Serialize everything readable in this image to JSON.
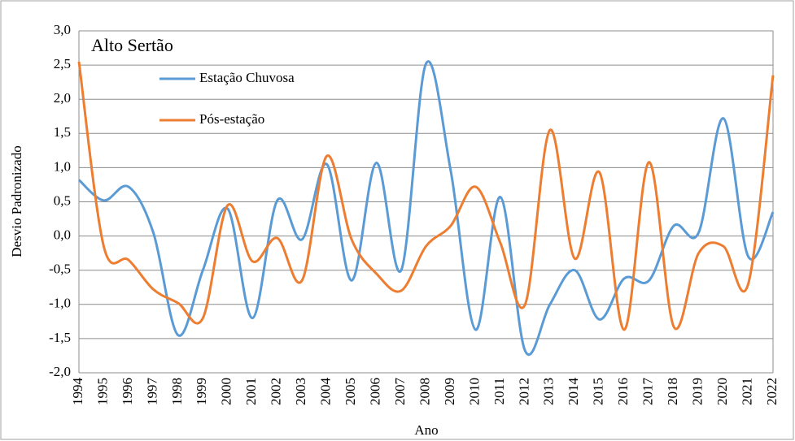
{
  "chart_data": {
    "type": "line",
    "title": "Alto Sertão",
    "x_label": "Ano",
    "y_label": "Desvio Padronizado",
    "categories": [
      "1994",
      "1995",
      "1996",
      "1997",
      "1998",
      "1999",
      "2000",
      "2001",
      "2002",
      "2003",
      "2004",
      "2005",
      "2006",
      "2007",
      "2008",
      "2009",
      "2010",
      "2011",
      "2012",
      "2013",
      "2014",
      "2015",
      "2016",
      "2017",
      "2018",
      "2019",
      "2020",
      "2021",
      "2022"
    ],
    "series": [
      {
        "name": "Estação Chuvosa",
        "color": "#5b9bd5",
        "values": [
          0.82,
          0.52,
          0.72,
          0.05,
          -1.45,
          -0.5,
          0.4,
          -1.2,
          0.52,
          -0.05,
          1.05,
          -0.65,
          1.07,
          -0.5,
          2.52,
          0.95,
          -1.37,
          0.57,
          -1.68,
          -1.0,
          -0.5,
          -1.22,
          -0.62,
          -0.65,
          0.15,
          0.05,
          1.72,
          -0.3,
          0.35
        ]
      },
      {
        "name": "Pós-estação",
        "color": "#ed7d31",
        "values": [
          2.55,
          -0.15,
          -0.35,
          -0.78,
          -0.98,
          -1.2,
          0.45,
          -0.37,
          -0.03,
          -0.65,
          1.17,
          -0.05,
          -0.55,
          -0.8,
          -0.15,
          0.15,
          0.72,
          -0.1,
          -1.0,
          1.55,
          -0.33,
          0.93,
          -1.37,
          1.08,
          -1.33,
          -0.25,
          -0.15,
          -0.7,
          2.35
        ]
      }
    ],
    "ylim": [
      -2.0,
      3.0
    ],
    "yticks": [
      {
        "value": 3.0,
        "label": "3,0"
      },
      {
        "value": 2.5,
        "label": "2,5"
      },
      {
        "value": 2.0,
        "label": "2,0"
      },
      {
        "value": 1.5,
        "label": "1,5"
      },
      {
        "value": 1.0,
        "label": "1,0"
      },
      {
        "value": 0.5,
        "label": "0,5"
      },
      {
        "value": 0.0,
        "label": "0,0"
      },
      {
        "value": -0.5,
        "label": "-0,5"
      },
      {
        "value": -1.0,
        "label": "-1,0"
      },
      {
        "value": -1.5,
        "label": "-1,5"
      },
      {
        "value": -2.0,
        "label": "-2,0"
      }
    ],
    "grid": true
  }
}
